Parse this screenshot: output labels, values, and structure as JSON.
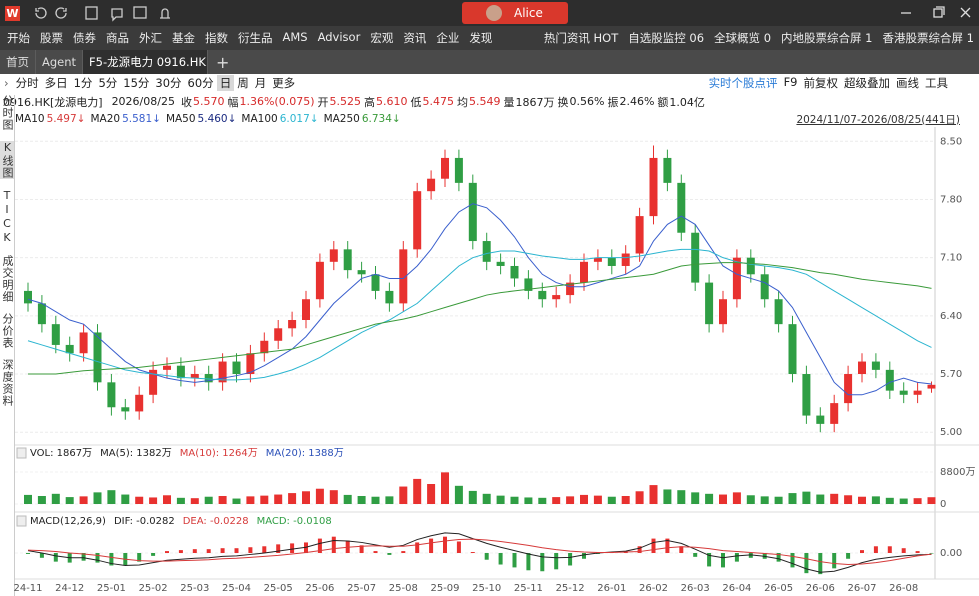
{
  "titlebar": {
    "logo": "W",
    "user": "Alice"
  },
  "menu": [
    "开始",
    "股票",
    "债券",
    "商品",
    "外汇",
    "基金",
    "指数",
    "衍生品",
    "AMS",
    "Advisor",
    "宏观",
    "资讯",
    "企业",
    "发现"
  ],
  "menu_right": [
    "热门资讯 HOT",
    "自选股监控 06",
    "全球概览 0",
    "内地股票综合屏 1",
    "香港股票综合屏 1"
  ],
  "tabs": [
    "首页",
    "Agent",
    "F5-龙源电力 0916.HK"
  ],
  "periods": [
    "分时",
    "多日",
    "1分",
    "5分",
    "15分",
    "30分",
    "60分",
    "日",
    "周",
    "月",
    "更多"
  ],
  "tools": [
    "实时个股点评",
    "F9",
    "前复权",
    "超级叠加",
    "画线",
    "工具"
  ],
  "sidebar": [
    "分时图",
    "K线图",
    "TICK",
    "成交明细",
    "分价表",
    "深度资料"
  ],
  "quote": {
    "code": "0916.HK[龙源电力]",
    "date": "2026/08/25",
    "fields": [
      {
        "label": "收",
        "value": "5.570"
      },
      {
        "label": "幅",
        "value": "1.36%(0.075)"
      },
      {
        "label": "开",
        "value": "5.525"
      },
      {
        "label": "高",
        "value": "5.610"
      },
      {
        "label": "低",
        "value": "5.475"
      },
      {
        "label": "均",
        "value": "5.549"
      },
      {
        "label": "量",
        "value": "1867万"
      },
      {
        "label": "换",
        "value": "0.56%"
      },
      {
        "label": "振",
        "value": "2.46%"
      },
      {
        "label": "额",
        "value": "1.04亿"
      }
    ]
  },
  "range": "2024/11/07-2026/08/25(441日)",
  "chart_data": [
    {
      "type": "candlestick",
      "ylim": [
        4.87,
        8.6
      ],
      "yticks": [
        {
          "value": 5,
          "label": "5.00"
        },
        {
          "value": 5.7,
          "label": "5.70"
        },
        {
          "value": 6.4,
          "label": "6.40"
        },
        {
          "value": 7.1,
          "label": "7.10"
        },
        {
          "value": 7.8,
          "label": "7.80"
        },
        {
          "value": 8.5,
          "label": "8.50"
        }
      ],
      "grid": true,
      "up_color": "#e8312f",
      "down_color": "#2f9e44",
      "open": [
        6.7,
        6.55,
        6.3,
        6.05,
        5.95,
        6.2,
        5.6,
        5.3,
        5.25,
        5.45,
        5.75,
        5.8,
        5.65,
        5.7,
        5.6,
        5.85,
        5.7,
        5.95,
        6.1,
        6.25,
        6.35,
        6.6,
        7.05,
        7.2,
        6.95,
        6.9,
        6.7,
        6.55,
        7.2,
        7.9,
        8.05,
        8.3,
        8.0,
        7.3,
        7.05,
        7.0,
        6.85,
        6.7,
        6.6,
        6.65,
        6.8,
        7.05,
        7.1,
        7.0,
        7.15,
        7.6,
        8.3,
        8.0,
        7.4,
        6.8,
        6.3,
        6.6,
        7.1,
        6.9,
        6.6,
        6.3,
        5.7,
        5.2,
        5.1,
        5.35,
        5.7,
        5.85,
        5.75,
        5.5,
        5.45,
        5.525
      ],
      "high": [
        6.8,
        6.65,
        6.4,
        6.15,
        6.3,
        6.3,
        5.7,
        5.4,
        5.55,
        5.85,
        5.9,
        5.9,
        5.8,
        5.8,
        5.95,
        5.95,
        6.05,
        6.2,
        6.35,
        6.45,
        6.7,
        7.15,
        7.3,
        7.3,
        7.05,
        7.0,
        6.8,
        7.3,
        8.0,
        8.15,
        8.4,
        8.4,
        8.1,
        7.4,
        7.15,
        7.1,
        6.95,
        6.8,
        6.75,
        6.9,
        7.15,
        7.2,
        7.2,
        7.25,
        7.7,
        8.45,
        8.4,
        8.1,
        7.5,
        6.9,
        6.7,
        7.2,
        7.2,
        7.0,
        6.7,
        6.4,
        5.8,
        5.3,
        5.45,
        5.8,
        5.95,
        5.95,
        5.85,
        5.6,
        5.6,
        5.61
      ],
      "low": [
        6.45,
        6.2,
        5.95,
        5.85,
        5.85,
        5.5,
        5.2,
        5.15,
        5.15,
        5.35,
        5.65,
        5.55,
        5.55,
        5.5,
        5.5,
        5.6,
        5.6,
        5.85,
        6.0,
        6.15,
        6.25,
        6.5,
        6.95,
        6.85,
        6.8,
        6.6,
        6.45,
        6.45,
        7.1,
        7.8,
        7.95,
        7.9,
        7.2,
        6.95,
        6.9,
        6.75,
        6.6,
        6.5,
        6.5,
        6.55,
        6.7,
        6.95,
        6.9,
        6.9,
        7.05,
        7.5,
        7.9,
        7.3,
        6.7,
        6.2,
        6.2,
        6.5,
        6.8,
        6.5,
        6.2,
        5.6,
        5.1,
        5.0,
        5.0,
        5.25,
        5.6,
        5.65,
        5.4,
        5.35,
        5.35,
        5.475
      ],
      "close": [
        6.55,
        6.3,
        6.05,
        5.95,
        6.2,
        5.6,
        5.3,
        5.25,
        5.45,
        5.75,
        5.8,
        5.65,
        5.7,
        5.6,
        5.85,
        5.7,
        5.95,
        6.1,
        6.25,
        6.35,
        6.6,
        7.05,
        7.2,
        6.95,
        6.9,
        6.7,
        6.55,
        7.2,
        7.9,
        8.05,
        8.3,
        8.0,
        7.3,
        7.05,
        7.0,
        6.85,
        6.7,
        6.6,
        6.65,
        6.8,
        7.05,
        7.1,
        7.0,
        7.15,
        7.6,
        8.3,
        8.0,
        7.4,
        6.8,
        6.3,
        6.6,
        7.1,
        6.9,
        6.6,
        6.3,
        5.7,
        5.2,
        5.1,
        5.35,
        5.7,
        5.85,
        5.75,
        5.5,
        5.45,
        5.5,
        5.57
      ],
      "series": [
        {
          "name": "MA10",
          "label": "5.497↓",
          "color": "#d63a3a"
        },
        {
          "name": "MA20",
          "label": "5.581↓",
          "color": "#3a5fcd",
          "values": [
            6.6,
            6.55,
            6.45,
            6.35,
            6.3,
            6.15,
            6.0,
            5.85,
            5.75,
            5.7,
            5.65,
            5.62,
            5.6,
            5.62,
            5.65,
            5.68,
            5.72,
            5.8,
            5.9,
            6.0,
            6.15,
            6.35,
            6.55,
            6.7,
            6.85,
            6.9,
            6.85,
            6.85,
            7.0,
            7.2,
            7.45,
            7.65,
            7.75,
            7.7,
            7.55,
            7.35,
            7.1,
            6.9,
            6.8,
            6.75,
            6.75,
            6.8,
            6.85,
            6.9,
            7.0,
            7.3,
            7.5,
            7.6,
            7.5,
            7.25,
            7.0,
            6.9,
            6.85,
            6.8,
            6.7,
            6.5,
            6.2,
            5.9,
            5.6,
            5.45,
            5.45,
            5.5,
            5.6,
            5.65,
            5.6,
            5.58
          ]
        },
        {
          "name": "MA50",
          "label": "5.460↓",
          "color": "#1a2a80"
        },
        {
          "name": "MA100",
          "label": "6.017↓",
          "color": "#2bb5d0",
          "values": [
            6.1,
            6.05,
            6.0,
            5.95,
            5.9,
            5.85,
            5.8,
            5.75,
            5.72,
            5.7,
            5.68,
            5.66,
            5.65,
            5.64,
            5.63,
            5.63,
            5.64,
            5.66,
            5.7,
            5.75,
            5.82,
            5.9,
            6.0,
            6.1,
            6.2,
            6.28,
            6.35,
            6.45,
            6.55,
            6.7,
            6.85,
            7.0,
            7.1,
            7.15,
            7.18,
            7.18,
            7.15,
            7.12,
            7.1,
            7.08,
            7.08,
            7.1,
            7.1,
            7.1,
            7.12,
            7.15,
            7.18,
            7.2,
            7.2,
            7.18,
            7.1,
            7.05,
            7.02,
            7.0,
            6.98,
            6.95,
            6.9,
            6.8,
            6.7,
            6.6,
            6.5,
            6.4,
            6.3,
            6.2,
            6.1,
            6.02
          ]
        },
        {
          "name": "MA250",
          "label": "6.734↓",
          "color": "#3a9a3a",
          "values": [
            5.7,
            5.7,
            5.7,
            5.72,
            5.74,
            5.75,
            5.76,
            5.77,
            5.78,
            5.8,
            5.82,
            5.84,
            5.86,
            5.88,
            5.9,
            5.92,
            5.94,
            5.96,
            5.98,
            6.0,
            6.05,
            6.1,
            6.15,
            6.2,
            6.25,
            6.3,
            6.33,
            6.36,
            6.4,
            6.45,
            6.5,
            6.55,
            6.6,
            6.65,
            6.68,
            6.7,
            6.72,
            6.74,
            6.76,
            6.78,
            6.8,
            6.82,
            6.84,
            6.86,
            6.88,
            6.9,
            6.95,
            7.0,
            7.02,
            7.03,
            7.04,
            7.04,
            7.03,
            7.02,
            7.0,
            6.98,
            6.95,
            6.92,
            6.9,
            6.87,
            6.84,
            6.82,
            6.8,
            6.78,
            6.76,
            6.73
          ]
        }
      ]
    },
    {
      "type": "bar",
      "header": [
        {
          "text": "VOL: 1867万",
          "color": "#222"
        },
        {
          "text": "MA(5): 1382万",
          "color": "#222"
        },
        {
          "text": "MA(10): 1264万",
          "color": "#d63a3a"
        },
        {
          "text": "MA(20): 1388万",
          "color": "#2b50b8"
        }
      ],
      "ylim": [
        0,
        11550
      ],
      "yticks": [
        0,
        {
          "value": 8800,
          "label": "8800万"
        }
      ],
      "values": [
        2500,
        2200,
        2800,
        1900,
        2100,
        3200,
        3800,
        2600,
        2000,
        1800,
        2400,
        1700,
        1600,
        2000,
        2200,
        1500,
        2100,
        2300,
        2600,
        3000,
        3500,
        4200,
        3800,
        2500,
        2200,
        2000,
        2100,
        4800,
        6900,
        5500,
        8700,
        5000,
        3600,
        2800,
        2300,
        2000,
        1800,
        1700,
        1900,
        2100,
        2500,
        2300,
        2000,
        2200,
        3500,
        5200,
        4000,
        3800,
        3200,
        2800,
        2600,
        3200,
        2400,
        2100,
        2000,
        3000,
        3400,
        2600,
        2800,
        2400,
        2000,
        2100,
        1700,
        1500,
        1600,
        1867
      ]
    },
    {
      "type": "macd",
      "header": [
        {
          "text": "MACD(12,26,9)",
          "color": "#222"
        },
        {
          "text": "DIF: -0.0282",
          "color": "#222"
        },
        {
          "text": "DEA: -0.0228",
          "color": "#d63a3a"
        },
        {
          "text": "MACD: -0.0108",
          "color": "#2f9e44"
        }
      ],
      "ylim": [
        -0.5,
        0.5
      ],
      "yticks": [
        {
          "value": 0,
          "label": "0.00"
        }
      ],
      "dif_color": "#222",
      "dea_color": "#d63a3a",
      "up_color": "#e8312f",
      "down_color": "#2f9e44",
      "dif": [
        0.05,
        0.0,
        -0.06,
        -0.1,
        -0.1,
        -0.15,
        -0.22,
        -0.26,
        -0.25,
        -0.2,
        -0.15,
        -0.13,
        -0.11,
        -0.1,
        -0.07,
        -0.06,
        -0.03,
        0.0,
        0.04,
        0.08,
        0.12,
        0.2,
        0.26,
        0.25,
        0.22,
        0.17,
        0.12,
        0.16,
        0.28,
        0.36,
        0.42,
        0.4,
        0.3,
        0.2,
        0.12,
        0.05,
        -0.02,
        -0.08,
        -0.1,
        -0.09,
        -0.04,
        0.0,
        0.02,
        0.04,
        0.1,
        0.22,
        0.26,
        0.2,
        0.08,
        -0.05,
        -0.1,
        -0.06,
        -0.04,
        -0.07,
        -0.12,
        -0.22,
        -0.33,
        -0.4,
        -0.38,
        -0.3,
        -0.2,
        -0.13,
        -0.09,
        -0.06,
        -0.04,
        -0.0282
      ],
      "dea": [
        0.06,
        0.05,
        0.03,
        0.0,
        -0.02,
        -0.05,
        -0.09,
        -0.13,
        -0.16,
        -0.17,
        -0.17,
        -0.16,
        -0.15,
        -0.14,
        -0.12,
        -0.11,
        -0.09,
        -0.07,
        -0.05,
        -0.02,
        0.01,
        0.05,
        0.09,
        0.12,
        0.14,
        0.15,
        0.14,
        0.14,
        0.17,
        0.21,
        0.25,
        0.28,
        0.29,
        0.27,
        0.24,
        0.2,
        0.16,
        0.11,
        0.07,
        0.04,
        0.02,
        0.01,
        0.01,
        0.02,
        0.03,
        0.07,
        0.11,
        0.13,
        0.12,
        0.09,
        0.05,
        0.03,
        0.01,
        -0.01,
        -0.03,
        -0.07,
        -0.12,
        -0.18,
        -0.22,
        -0.24,
        -0.23,
        -0.2,
        -0.16,
        -0.11,
        -0.06,
        -0.0228
      ],
      "macd": [
        -0.02,
        -0.1,
        -0.18,
        -0.2,
        -0.16,
        -0.2,
        -0.26,
        -0.26,
        -0.18,
        -0.06,
        0.04,
        0.06,
        0.08,
        0.08,
        0.1,
        0.1,
        0.12,
        0.14,
        0.18,
        0.2,
        0.22,
        0.3,
        0.34,
        0.26,
        0.16,
        0.04,
        -0.04,
        0.04,
        0.22,
        0.3,
        0.34,
        0.24,
        0.02,
        -0.14,
        -0.24,
        -0.3,
        -0.36,
        -0.38,
        -0.34,
        -0.26,
        -0.12,
        -0.02,
        0.02,
        0.04,
        0.14,
        0.3,
        0.3,
        0.14,
        -0.08,
        -0.28,
        -0.3,
        -0.18,
        -0.1,
        -0.12,
        -0.18,
        -0.3,
        -0.42,
        -0.44,
        -0.32,
        -0.12,
        0.06,
        0.14,
        0.14,
        0.1,
        0.04,
        -0.0108
      ],
      "xlabels": [
        "24-11",
        "24-12",
        "25-01",
        "25-02",
        "25-03",
        "25-04",
        "25-05",
        "25-06",
        "25-07",
        "25-08",
        "25-09",
        "25-10",
        "25-11",
        "25-12",
        "26-01",
        "26-02",
        "26-03",
        "26-04",
        "26-05",
        "26-06",
        "26-07",
        "26-08"
      ]
    }
  ]
}
